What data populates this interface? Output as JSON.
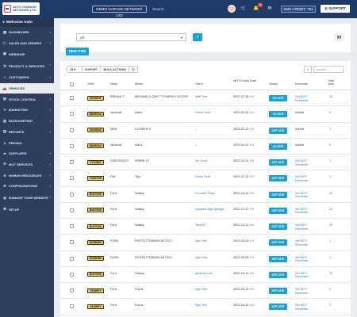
{
  "header": {
    "logo_text": "AUTO GARAGE NETWORK LTD.",
    "garage_selector": "DEMO GARAGE NETWORK LTD",
    "search_placeholder": "Search...",
    "notification_count": "49",
    "sms_credit": "SMS CREDIT: 784",
    "support_label": "SUPPORT"
  },
  "sidebar": {
    "welcome": "Welcome Auto",
    "items": [
      {
        "label": "DASHBOARD",
        "icon": "dashboard-icon",
        "chevron": true
      },
      {
        "label": "SALES AND ORDERS",
        "icon": "cart-icon",
        "chevron": true
      },
      {
        "label": "WEBSHOP",
        "icon": "shop-icon",
        "chevron": false
      },
      {
        "label": "PRODUCT & SERVICES",
        "icon": "wrench-icon",
        "chevron": true
      },
      {
        "label": "CUSTOMERS",
        "icon": "users-icon",
        "chevron": true
      },
      {
        "label": "VEHICLES",
        "icon": "car-icon",
        "chevron": false,
        "active": true
      },
      {
        "label": "STOCK CONTROL",
        "icon": "box-icon",
        "chevron": true
      },
      {
        "label": "MARKETING",
        "icon": "megaphone-icon",
        "chevron": true
      },
      {
        "label": "BOOKKEEPING",
        "icon": "book-icon",
        "chevron": true
      },
      {
        "label": "REPORTS",
        "icon": "report-icon",
        "chevron": true
      },
      {
        "label": "PRICING",
        "icon": "tag-icon",
        "chevron": false
      },
      {
        "label": "SUPPLIERS",
        "icon": "truck-icon",
        "chevron": true
      },
      {
        "label": "MOT SERVICES",
        "icon": "tools-icon",
        "chevron": true
      },
      {
        "label": "HUMAN RESOURCES",
        "icon": "people-icon",
        "chevron": true
      },
      {
        "label": "CONFIGURATIONS",
        "icon": "gear-icon",
        "chevron": true
      },
      {
        "label": "MANAGE YOUR WEBSITE",
        "icon": "globe-icon",
        "chevron": true
      },
      {
        "label": "SETUP",
        "icon": "cog-icon",
        "chevron": false
      }
    ]
  },
  "filter": {
    "select_value": "All"
  },
  "toolbar": {
    "new_item": "NEW ITEM",
    "page_size": "25",
    "export": "EXPORT",
    "bulk_actions": "BULK ACTIONS",
    "search_placeholder": "Search..."
  },
  "table": {
    "headers": {
      "vrm": "VRM",
      "make": "Make",
      "model": "Model",
      "client": "Client",
      "mot": "MOT Expiry Date",
      "status": "Status",
      "reminder": "Reminder",
      "jobs": "Total Jobs"
    },
    "rows": [
      {
        "vrm": "SE13GHT",
        "make": "RENAULT",
        "model": "MEGANE D-QUE TT ENERGY DCI S/S",
        "client": "Matt Test",
        "mot": "2022-07-30",
        "status": "ON SITE",
        "reminder": "Set MOT Reminder",
        "jobs": "10"
      },
      {
        "vrm": "MD65VKA",
        "make": "Vauxhall",
        "model": "Astra",
        "client": "Demo User",
        "mot": "1970-01-01",
        "status": "ON SITE",
        "reminder": "Added",
        "jobs": "0"
      },
      {
        "vrm": "SK61RAR",
        "make": "MINI",
        "model": "COOPER D",
        "client": "--",
        "mot": "2023-03-22",
        "status": "OFF SITE",
        "reminder": "Added",
        "jobs": "1"
      },
      {
        "vrm": "MD65VKA",
        "make": "Vauxhall",
        "model": "Astra",
        "client": "--",
        "mot": "1970-01-01",
        "status": "ON SITE",
        "reminder": "Added",
        "jobs": "0"
      },
      {
        "vrm": "YY12SMY",
        "make": "CHEVROLET",
        "model": "SPARK LT",
        "client": "Vic Scott",
        "mot": "2022-10-01",
        "status": "OFF SITE",
        "reminder": "Set MOT Reminder",
        "jobs": "1"
      },
      {
        "vrm": "YC65TXW",
        "make": "Fiat",
        "model": "Tipo",
        "client": "Demo User",
        "mot": "2023-02-22",
        "status": "OFF SITE",
        "reminder": "Set MOT Reminder",
        "jobs": "1"
      },
      {
        "vrm": "BV07OSN",
        "make": "Ford",
        "model": "Galaxy",
        "client": "Poonam Singh",
        "mot": "2022-10-11",
        "status": "OFF SITE",
        "reminder": "Set MOT Reminder",
        "jobs": "20"
      },
      {
        "vrm": "BV07OSN",
        "make": "Ford",
        "model": "Galaxy",
        "client": "priyanka Agro garage",
        "mot": "2022-10-11",
        "status": "OFF SITE",
        "reminder": "Set MOT Reminder",
        "jobs": "20"
      },
      {
        "vrm": "BV07OSN",
        "make": "Ford",
        "model": "Galaxy",
        "client": "Test931",
        "mot": "2022-10-11",
        "status": "OFF SITE",
        "reminder": "Set MOT Reminder",
        "jobs": "20"
      },
      {
        "vrm": "WU58HDH",
        "make": "FORD",
        "model": "FIESTA TITANIUM 68 TDCI",
        "client": "Agn Test",
        "mot": "2023-03-03",
        "status": "OFF SITE",
        "reminder": "Set MOT Reminder",
        "jobs": "1"
      },
      {
        "vrm": "WU58HDH",
        "make": "FORD",
        "model": "FIESTA TITANIUM 68 TDCI",
        "client": "Agn Test",
        "mot": "2023-03-03",
        "status": "OFF SITE",
        "reminder": "Set MOT Reminder",
        "jobs": "1"
      },
      {
        "vrm": "BV07OSN",
        "make": "Ford",
        "model": "Galaxy",
        "client": "priyanka test",
        "mot": "2022-10-11",
        "status": "OFF SITE",
        "reminder": "Set MOT Reminder",
        "jobs": "20"
      },
      {
        "vrm": "YE15RFY",
        "make": "Ford",
        "model": "Focus",
        "client": "Agn Test",
        "mot": "2023-04-19",
        "status": "OFF SITE",
        "reminder": "Set MOT Reminder",
        "jobs": "2"
      },
      {
        "vrm": "YE15RFY",
        "make": "Ford",
        "model": "Focus",
        "client": "Agn Test",
        "mot": "2023-04-19",
        "status": "OFF SITE",
        "reminder": "Set MOT Reminder",
        "jobs": "2"
      }
    ]
  },
  "colors": {
    "topbar": "#1f3a68",
    "sidebar": "#2d3e5f",
    "accent": "#1ba1d6",
    "plate": "#f6c844",
    "link": "#2a7bd8"
  }
}
